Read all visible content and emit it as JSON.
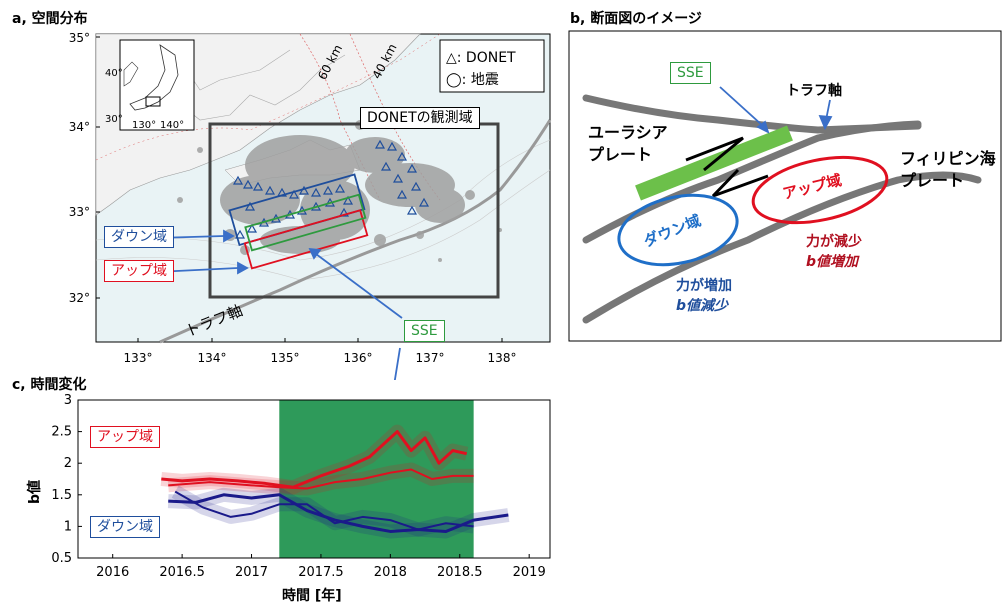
{
  "panel_a": {
    "label": "a, 空間分布",
    "y_ticks": [
      "35°",
      "34°",
      "33°",
      "32°"
    ],
    "x_ticks": [
      "133°",
      "134°",
      "135°",
      "136°",
      "137°",
      "138°"
    ],
    "inset_y_ticks": [
      "40°",
      "30°"
    ],
    "inset_x_ticks": [
      "130°",
      "140°"
    ],
    "legend_donet": "△: DONET",
    "legend_quake": "◯: 地震",
    "contour_60": "60 km",
    "contour_40": "40 km",
    "obs_area_label": "DONETの観測域",
    "down_label": "ダウン域",
    "up_label": "アップ域",
    "trough_label": "トラフ軸",
    "sse_label": "SSE",
    "colors": {
      "down": "#1f4e9c",
      "up": "#e01020",
      "sse": "#2e9a3e",
      "sea": "#e9f3f5"
    }
  },
  "panel_b": {
    "label": "b, 断面図のイメージ",
    "sse_label": "SSE",
    "trough_label": "トラフ軸",
    "eurasia_label": [
      "ユーラシア",
      "プレート"
    ],
    "philippine_label": [
      "フィリピン海",
      "プレート"
    ],
    "up_label": "アップ域",
    "down_label": "ダウン域",
    "up_text": [
      "力が減少",
      "b値増加"
    ],
    "down_text": [
      "力が増加",
      "b値減少"
    ]
  },
  "panel_c": {
    "label": "c, 時間変化",
    "up_label": "アップ域",
    "down_label": "ダウン域",
    "ylabel": "b値",
    "xlabel": "時間 [年]"
  },
  "chart_data": {
    "type": "line",
    "title": "",
    "xlabel": "時間 [年]",
    "ylabel": "b値",
    "xlim": [
      2015.75,
      2019.15
    ],
    "ylim": [
      0.5,
      3
    ],
    "x_ticks": [
      2016,
      2016.5,
      2017,
      2017.5,
      2018,
      2018.5,
      2019
    ],
    "x_tick_labels": [
      "2016",
      "2016.5",
      "2017",
      "2017.5",
      "2018",
      "2018.5",
      "2019"
    ],
    "y_ticks": [
      0.5,
      1,
      1.5,
      2,
      2.5,
      3
    ],
    "y_tick_labels": [
      "0.5",
      "1",
      "1.5",
      "2",
      "2.5",
      "3"
    ],
    "sse_period": [
      2017.2,
      2018.6
    ],
    "series": [
      {
        "name": "アップ域",
        "color": "#e01020",
        "x": [
          2016.35,
          2016.5,
          2016.7,
          2016.9,
          2017.1,
          2017.3,
          2017.5,
          2017.7,
          2017.85,
          2017.95,
          2018.05,
          2018.15,
          2018.25,
          2018.35,
          2018.45,
          2018.55
        ],
        "values": [
          1.75,
          1.72,
          1.75,
          1.72,
          1.68,
          1.62,
          1.8,
          1.95,
          2.1,
          2.3,
          2.5,
          2.2,
          2.4,
          2.0,
          2.2,
          2.15
        ]
      },
      {
        "name": "",
        "color": "#e01020",
        "x": [
          2016.4,
          2016.7,
          2017.0,
          2017.2,
          2017.4,
          2017.6,
          2017.8,
          2018.0,
          2018.15,
          2018.3,
          2018.45,
          2018.6
        ],
        "values": [
          1.65,
          1.7,
          1.65,
          1.62,
          1.6,
          1.7,
          1.75,
          1.85,
          1.9,
          1.75,
          1.8,
          1.8
        ]
      },
      {
        "name": "ダウン域",
        "color": "#1a1a8a",
        "x": [
          2016.4,
          2016.6,
          2016.8,
          2017.0,
          2017.2,
          2017.4,
          2017.6,
          2017.8,
          2018.0,
          2018.2,
          2018.4,
          2018.6,
          2018.85
        ],
        "values": [
          1.4,
          1.38,
          1.5,
          1.45,
          1.5,
          1.25,
          1.1,
          1.0,
          0.92,
          0.95,
          0.92,
          1.1,
          1.18
        ]
      },
      {
        "name": "",
        "color": "#1a1a8a",
        "x": [
          2016.45,
          2016.65,
          2016.85,
          2017.0,
          2017.2,
          2017.4,
          2017.6,
          2017.8,
          2018.0,
          2018.2,
          2018.4,
          2018.6
        ],
        "values": [
          1.55,
          1.3,
          1.15,
          1.2,
          1.35,
          1.35,
          1.05,
          1.15,
          1.1,
          0.95,
          1.05,
          1.0
        ]
      }
    ]
  }
}
